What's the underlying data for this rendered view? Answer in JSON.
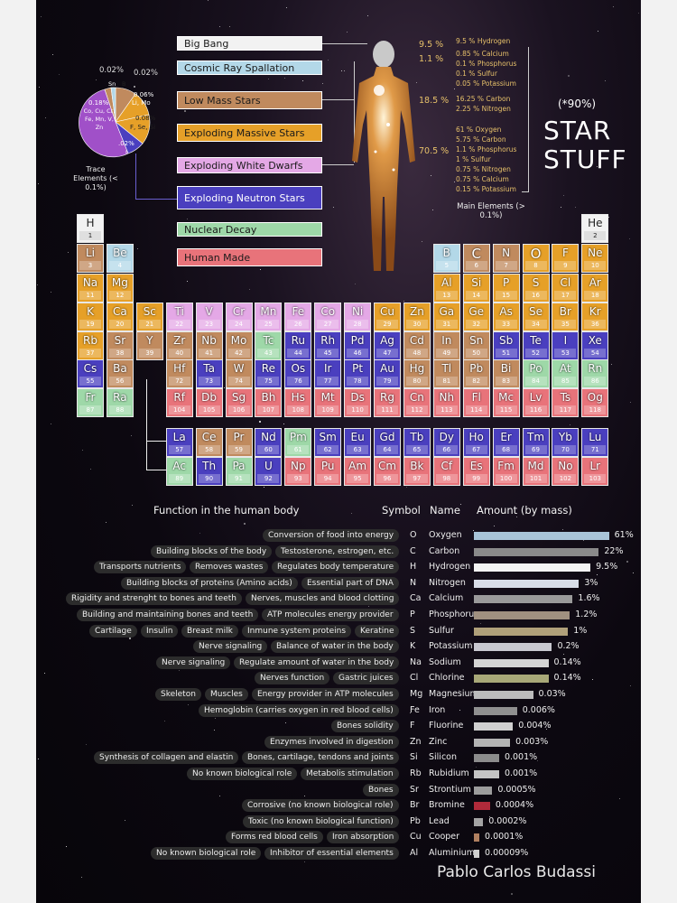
{
  "legend": {
    "big_bang": "Big Bang",
    "cosmic_ray": "Cosmic Ray Spallation",
    "low_mass": "Low Mass Stars",
    "exploding_massive": "Exploding Massive Stars",
    "exploding_white": "Exploding White Dwarfs",
    "exploding_neutron": "Exploding Neutron Stars",
    "nuclear_decay": "Nuclear Decay",
    "human_made": "Human Made"
  },
  "colors": {
    "bigbang": "#f2f2f2",
    "cosmic": "#b3d8e8",
    "lowmass": "#c08a5e",
    "massive": "#e6a028",
    "white": "#e4a8e6",
    "neutron": "#4a3fbf",
    "decay": "#9ed8a8",
    "human": "#e8737a"
  },
  "pie": {
    "title": "Trace Elements (< 0.1%)",
    "p1": "0.02%",
    "p2": "0.02%",
    "p3": "0.06%",
    "p4": "0.18%",
    "p5": "0.08%",
    "p6": ".02%",
    "sn": "Sn",
    "b": "B",
    "li_mo": "Li, Mo",
    "co_list": "Co, Cu, Cr, Fe, Mn, V, Zn",
    "f_se": "F, Se, Si",
    "i": "I"
  },
  "body": {
    "p95": "9.5 %",
    "p11": "1.1 %",
    "p185": "18.5 %",
    "p705": "70.5 %",
    "g1": [
      "9.5 % Hydrogen"
    ],
    "g2": [
      "0.85 % Calcium",
      "0.1 % Phosphorus",
      "0.1 % Sulfur",
      "0.05 % Potassium"
    ],
    "g3": [
      "16.25 % Carbon",
      "2.25 % Nitrogen"
    ],
    "g4": [
      "61 % Oxygen",
      "5.75 % Carbon",
      "1.1 % Phosphorus",
      "1 % Sulfur",
      "0.75 % Nitrogen",
      "0.75 % Calcium",
      "0.15 % Potassium"
    ],
    "main_title": "Main Elements (> 0.1%)"
  },
  "headline": {
    "pct": "(*90%)",
    "line1": "STAR",
    "line2": "STUFF"
  },
  "elements": [
    {
      "s": "H",
      "n": 1,
      "r": 1,
      "c": 1,
      "t": "bigbang"
    },
    {
      "s": "He",
      "n": 2,
      "r": 1,
      "c": 18,
      "t": "bigbang"
    },
    {
      "s": "Li",
      "n": 3,
      "r": 2,
      "c": 1,
      "t": "lowmass"
    },
    {
      "s": "Be",
      "n": 4,
      "r": 2,
      "c": 2,
      "t": "cosmic"
    },
    {
      "s": "B",
      "n": 5,
      "r": 2,
      "c": 13,
      "t": "cosmic"
    },
    {
      "s": "C",
      "n": 6,
      "r": 2,
      "c": 14,
      "t": "lowmass"
    },
    {
      "s": "N",
      "n": 7,
      "r": 2,
      "c": 15,
      "t": "lowmass"
    },
    {
      "s": "O",
      "n": 8,
      "r": 2,
      "c": 16,
      "t": "massive"
    },
    {
      "s": "F",
      "n": 9,
      "r": 2,
      "c": 17,
      "t": "massive"
    },
    {
      "s": "Ne",
      "n": 10,
      "r": 2,
      "c": 18,
      "t": "massive"
    },
    {
      "s": "Na",
      "n": 11,
      "r": 3,
      "c": 1,
      "t": "massive"
    },
    {
      "s": "Mg",
      "n": 12,
      "r": 3,
      "c": 2,
      "t": "massive"
    },
    {
      "s": "Al",
      "n": 13,
      "r": 3,
      "c": 13,
      "t": "massive"
    },
    {
      "s": "Si",
      "n": 14,
      "r": 3,
      "c": 14,
      "t": "massive"
    },
    {
      "s": "P",
      "n": 15,
      "r": 3,
      "c": 15,
      "t": "massive"
    },
    {
      "s": "S",
      "n": 16,
      "r": 3,
      "c": 16,
      "t": "massive"
    },
    {
      "s": "Cl",
      "n": 17,
      "r": 3,
      "c": 17,
      "t": "massive"
    },
    {
      "s": "Ar",
      "n": 18,
      "r": 3,
      "c": 18,
      "t": "massive"
    },
    {
      "s": "K",
      "n": 19,
      "r": 4,
      "c": 1,
      "t": "massive"
    },
    {
      "s": "Ca",
      "n": 20,
      "r": 4,
      "c": 2,
      "t": "massive"
    },
    {
      "s": "Sc",
      "n": 21,
      "r": 4,
      "c": 3,
      "t": "massive"
    },
    {
      "s": "Ti",
      "n": 22,
      "r": 4,
      "c": 4,
      "t": "white"
    },
    {
      "s": "V",
      "n": 23,
      "r": 4,
      "c": 5,
      "t": "white"
    },
    {
      "s": "Cr",
      "n": 24,
      "r": 4,
      "c": 6,
      "t": "white"
    },
    {
      "s": "Mn",
      "n": 25,
      "r": 4,
      "c": 7,
      "t": "white"
    },
    {
      "s": "Fe",
      "n": 26,
      "r": 4,
      "c": 8,
      "t": "white"
    },
    {
      "s": "Co",
      "n": 27,
      "r": 4,
      "c": 9,
      "t": "white"
    },
    {
      "s": "Ni",
      "n": 28,
      "r": 4,
      "c": 10,
      "t": "white"
    },
    {
      "s": "Cu",
      "n": 29,
      "r": 4,
      "c": 11,
      "t": "massive"
    },
    {
      "s": "Zn",
      "n": 30,
      "r": 4,
      "c": 12,
      "t": "massive"
    },
    {
      "s": "Ga",
      "n": 31,
      "r": 4,
      "c": 13,
      "t": "massive"
    },
    {
      "s": "Ge",
      "n": 32,
      "r": 4,
      "c": 14,
      "t": "massive"
    },
    {
      "s": "As",
      "n": 33,
      "r": 4,
      "c": 15,
      "t": "massive"
    },
    {
      "s": "Se",
      "n": 34,
      "r": 4,
      "c": 16,
      "t": "massive"
    },
    {
      "s": "Br",
      "n": 35,
      "r": 4,
      "c": 17,
      "t": "massive"
    },
    {
      "s": "Kr",
      "n": 36,
      "r": 4,
      "c": 18,
      "t": "massive"
    },
    {
      "s": "Rb",
      "n": 37,
      "r": 5,
      "c": 1,
      "t": "massive"
    },
    {
      "s": "Sr",
      "n": 38,
      "r": 5,
      "c": 2,
      "t": "lowmass"
    },
    {
      "s": "Y",
      "n": 39,
      "r": 5,
      "c": 3,
      "t": "lowmass"
    },
    {
      "s": "Zr",
      "n": 40,
      "r": 5,
      "c": 4,
      "t": "lowmass"
    },
    {
      "s": "Nb",
      "n": 41,
      "r": 5,
      "c": 5,
      "t": "lowmass"
    },
    {
      "s": "Mo",
      "n": 42,
      "r": 5,
      "c": 6,
      "t": "lowmass"
    },
    {
      "s": "Tc",
      "n": 43,
      "r": 5,
      "c": 7,
      "t": "decay"
    },
    {
      "s": "Ru",
      "n": 44,
      "r": 5,
      "c": 8,
      "t": "neutron"
    },
    {
      "s": "Rh",
      "n": 45,
      "r": 5,
      "c": 9,
      "t": "neutron"
    },
    {
      "s": "Pd",
      "n": 46,
      "r": 5,
      "c": 10,
      "t": "neutron"
    },
    {
      "s": "Ag",
      "n": 47,
      "r": 5,
      "c": 11,
      "t": "neutron"
    },
    {
      "s": "Cd",
      "n": 48,
      "r": 5,
      "c": 12,
      "t": "lowmass"
    },
    {
      "s": "In",
      "n": 49,
      "r": 5,
      "c": 13,
      "t": "lowmass"
    },
    {
      "s": "Sn",
      "n": 50,
      "r": 5,
      "c": 14,
      "t": "lowmass"
    },
    {
      "s": "Sb",
      "n": 51,
      "r": 5,
      "c": 15,
      "t": "neutron"
    },
    {
      "s": "Te",
      "n": 52,
      "r": 5,
      "c": 16,
      "t": "neutron"
    },
    {
      "s": "I",
      "n": 53,
      "r": 5,
      "c": 17,
      "t": "neutron"
    },
    {
      "s": "Xe",
      "n": 54,
      "r": 5,
      "c": 18,
      "t": "neutron"
    },
    {
      "s": "Cs",
      "n": 55,
      "r": 6,
      "c": 1,
      "t": "neutron"
    },
    {
      "s": "Ba",
      "n": 56,
      "r": 6,
      "c": 2,
      "t": "lowmass"
    },
    {
      "s": "Hf",
      "n": 72,
      "r": 6,
      "c": 4,
      "t": "lowmass"
    },
    {
      "s": "Ta",
      "n": 73,
      "r": 6,
      "c": 5,
      "t": "neutron"
    },
    {
      "s": "W",
      "n": 74,
      "r": 6,
      "c": 6,
      "t": "lowmass"
    },
    {
      "s": "Re",
      "n": 75,
      "r": 6,
      "c": 7,
      "t": "neutron"
    },
    {
      "s": "Os",
      "n": 76,
      "r": 6,
      "c": 8,
      "t": "neutron"
    },
    {
      "s": "Ir",
      "n": 77,
      "r": 6,
      "c": 9,
      "t": "neutron"
    },
    {
      "s": "Pt",
      "n": 78,
      "r": 6,
      "c": 10,
      "t": "neutron"
    },
    {
      "s": "Au",
      "n": 79,
      "r": 6,
      "c": 11,
      "t": "neutron"
    },
    {
      "s": "Hg",
      "n": 80,
      "r": 6,
      "c": 12,
      "t": "lowmass"
    },
    {
      "s": "Tl",
      "n": 81,
      "r": 6,
      "c": 13,
      "t": "lowmass"
    },
    {
      "s": "Pb",
      "n": 82,
      "r": 6,
      "c": 14,
      "t": "lowmass"
    },
    {
      "s": "Bi",
      "n": 83,
      "r": 6,
      "c": 15,
      "t": "lowmass"
    },
    {
      "s": "Po",
      "n": 84,
      "r": 6,
      "c": 16,
      "t": "decay"
    },
    {
      "s": "At",
      "n": 85,
      "r": 6,
      "c": 17,
      "t": "decay"
    },
    {
      "s": "Rn",
      "n": 86,
      "r": 6,
      "c": 18,
      "t": "decay"
    },
    {
      "s": "Fr",
      "n": 87,
      "r": 7,
      "c": 1,
      "t": "decay"
    },
    {
      "s": "Ra",
      "n": 88,
      "r": 7,
      "c": 2,
      "t": "decay"
    },
    {
      "s": "Rf",
      "n": 104,
      "r": 7,
      "c": 4,
      "t": "human"
    },
    {
      "s": "Db",
      "n": 105,
      "r": 7,
      "c": 5,
      "t": "human"
    },
    {
      "s": "Sg",
      "n": 106,
      "r": 7,
      "c": 6,
      "t": "human"
    },
    {
      "s": "Bh",
      "n": 107,
      "r": 7,
      "c": 7,
      "t": "human"
    },
    {
      "s": "Hs",
      "n": 108,
      "r": 7,
      "c": 8,
      "t": "human"
    },
    {
      "s": "Mt",
      "n": 109,
      "r": 7,
      "c": 9,
      "t": "human"
    },
    {
      "s": "Ds",
      "n": 110,
      "r": 7,
      "c": 10,
      "t": "human"
    },
    {
      "s": "Rg",
      "n": 111,
      "r": 7,
      "c": 11,
      "t": "human"
    },
    {
      "s": "Cn",
      "n": 112,
      "r": 7,
      "c": 12,
      "t": "human"
    },
    {
      "s": "Nh",
      "n": 113,
      "r": 7,
      "c": 13,
      "t": "human"
    },
    {
      "s": "Fl",
      "n": 114,
      "r": 7,
      "c": 14,
      "t": "human"
    },
    {
      "s": "Mc",
      "n": 115,
      "r": 7,
      "c": 15,
      "t": "human"
    },
    {
      "s": "Lv",
      "n": 116,
      "r": 7,
      "c": 16,
      "t": "human"
    },
    {
      "s": "Ts",
      "n": 117,
      "r": 7,
      "c": 17,
      "t": "human"
    },
    {
      "s": "Og",
      "n": 118,
      "r": 7,
      "c": 18,
      "t": "human"
    },
    {
      "s": "La",
      "n": 57,
      "r": 9,
      "c": 4,
      "t": "neutron"
    },
    {
      "s": "Ce",
      "n": 58,
      "r": 9,
      "c": 5,
      "t": "lowmass"
    },
    {
      "s": "Pr",
      "n": 59,
      "r": 9,
      "c": 6,
      "t": "lowmass"
    },
    {
      "s": "Nd",
      "n": 60,
      "r": 9,
      "c": 7,
      "t": "neutron"
    },
    {
      "s": "Pm",
      "n": 61,
      "r": 9,
      "c": 8,
      "t": "decay"
    },
    {
      "s": "Sm",
      "n": 62,
      "r": 9,
      "c": 9,
      "t": "neutron"
    },
    {
      "s": "Eu",
      "n": 63,
      "r": 9,
      "c": 10,
      "t": "neutron"
    },
    {
      "s": "Gd",
      "n": 64,
      "r": 9,
      "c": 11,
      "t": "neutron"
    },
    {
      "s": "Tb",
      "n": 65,
      "r": 9,
      "c": 12,
      "t": "neutron"
    },
    {
      "s": "Dy",
      "n": 66,
      "r": 9,
      "c": 13,
      "t": "neutron"
    },
    {
      "s": "Ho",
      "n": 67,
      "r": 9,
      "c": 14,
      "t": "neutron"
    },
    {
      "s": "Er",
      "n": 68,
      "r": 9,
      "c": 15,
      "t": "neutron"
    },
    {
      "s": "Tm",
      "n": 69,
      "r": 9,
      "c": 16,
      "t": "neutron"
    },
    {
      "s": "Yb",
      "n": 70,
      "r": 9,
      "c": 17,
      "t": "neutron"
    },
    {
      "s": "Lu",
      "n": 71,
      "r": 9,
      "c": 18,
      "t": "neutron"
    },
    {
      "s": "Ac",
      "n": 89,
      "r": 10,
      "c": 4,
      "t": "decay"
    },
    {
      "s": "Th",
      "n": 90,
      "r": 10,
      "c": 5,
      "t": "neutron"
    },
    {
      "s": "Pa",
      "n": 91,
      "r": 10,
      "c": 6,
      "t": "decay"
    },
    {
      "s": "U",
      "n": 92,
      "r": 10,
      "c": 7,
      "t": "neutron"
    },
    {
      "s": "Np",
      "n": 93,
      "r": 10,
      "c": 8,
      "t": "human"
    },
    {
      "s": "Pu",
      "n": 94,
      "r": 10,
      "c": 9,
      "t": "human"
    },
    {
      "s": "Am",
      "n": 95,
      "r": 10,
      "c": 10,
      "t": "human"
    },
    {
      "s": "Cm",
      "n": 96,
      "r": 10,
      "c": 11,
      "t": "human"
    },
    {
      "s": "Bk",
      "n": 97,
      "r": 10,
      "c": 12,
      "t": "human"
    },
    {
      "s": "Cf",
      "n": 98,
      "r": 10,
      "c": 13,
      "t": "human"
    },
    {
      "s": "Es",
      "n": 99,
      "r": 10,
      "c": 14,
      "t": "human"
    },
    {
      "s": "Fm",
      "n": 100,
      "r": 10,
      "c": 15,
      "t": "human"
    },
    {
      "s": "Md",
      "n": 101,
      "r": 10,
      "c": 16,
      "t": "human"
    },
    {
      "s": "No",
      "n": 102,
      "r": 10,
      "c": 17,
      "t": "human"
    },
    {
      "s": "Lr",
      "n": 103,
      "r": 10,
      "c": 18,
      "t": "human"
    }
  ],
  "table_header": {
    "function": "Function in the human body",
    "symbol": "Symbol",
    "name": "Name",
    "amount": "Amount (by mass)"
  },
  "rows": [
    {
      "f": [
        "Conversion of food into energy"
      ],
      "s": "O",
      "n": "Oxygen",
      "a": "61%",
      "v": 61,
      "col": "#a8c4d8"
    },
    {
      "f": [
        "Building blocks of the body",
        "Testosterone, estrogen, etc."
      ],
      "s": "C",
      "n": "Carbon",
      "a": "22%",
      "v": 22,
      "col": "#8a8a8a"
    },
    {
      "f": [
        "Transports nutrients",
        "Removes wastes",
        "Regulates body temperature"
      ],
      "s": "H",
      "n": "Hydrogen",
      "a": "9.5%",
      "v": 9.5,
      "col": "#f4f4f4"
    },
    {
      "f": [
        "Building blocks of proteins (Amino acids)",
        "Essential part of DNA"
      ],
      "s": "N",
      "n": "Nitrogen",
      "a": "3%",
      "v": 3,
      "col": "#d8dde8"
    },
    {
      "f": [
        "Rigidity and strenght to bones and teeth",
        "Nerves, muscles and blood clotting"
      ],
      "s": "Ca",
      "n": "Calcium",
      "a": "1.6%",
      "v": 1.6,
      "col": "#9a9a9a"
    },
    {
      "f": [
        "Building and maintaining bones and teeth",
        "ATP molecules energy provider"
      ],
      "s": "P",
      "n": "Phosphorus",
      "a": "1.2%",
      "v": 1.2,
      "col": "#a09080"
    },
    {
      "f": [
        "Cartilage",
        "Insulin",
        "Breast milk",
        "Inmune system proteins",
        "Keratine"
      ],
      "s": "S",
      "n": "Sulfur",
      "a": "1%",
      "v": 1,
      "col": "#b0a07a"
    },
    {
      "f": [
        "Nerve signaling",
        "Balance of water in the body"
      ],
      "s": "K",
      "n": "Potassium",
      "a": "0.2%",
      "v": 0.2,
      "col": "#c8c8d0"
    },
    {
      "f": [
        "Nerve signaling",
        "Regulate amount of water in the body"
      ],
      "s": "Na",
      "n": "Sodium",
      "a": "0.14%",
      "v": 0.14,
      "col": "#d4d4d4"
    },
    {
      "f": [
        "Nerves function",
        "Gastric juices"
      ],
      "s": "Cl",
      "n": "Chlorine",
      "a": "0.14%",
      "v": 0.14,
      "col": "#a8a878"
    },
    {
      "f": [
        "Skeleton",
        "Muscles",
        "Energy provider in ATP molecules"
      ],
      "s": "Mg",
      "n": "Magnesium",
      "a": "0.03%",
      "v": 0.03,
      "col": "#bcbcbc"
    },
    {
      "f": [
        "Hemoglobin (carries oxygen in red blood cells)"
      ],
      "s": "Fe",
      "n": "Iron",
      "a": "0.006%",
      "v": 0.006,
      "col": "#909090"
    },
    {
      "f": [
        "Bones solidity"
      ],
      "s": "F",
      "n": "Fluorine",
      "a": "0.004%",
      "v": 0.004,
      "col": "#d0d0d0"
    },
    {
      "f": [
        "Enzymes involved in digestion"
      ],
      "s": "Zn",
      "n": "Zinc",
      "a": "0.003%",
      "v": 0.003,
      "col": "#b4b4b4"
    },
    {
      "f": [
        "Synthesis of collagen and elastin",
        "Bones, cartilage, tendons and joints"
      ],
      "s": "Si",
      "n": "Silicon",
      "a": "0.001%",
      "v": 0.001,
      "col": "#8c8c8c"
    },
    {
      "f": [
        "No known biological role",
        "Metabolis stimulation"
      ],
      "s": "Rb",
      "n": "Rubidium",
      "a": "0.001%",
      "v": 0.001,
      "col": "#c4c4c4"
    },
    {
      "f": [
        "Bones"
      ],
      "s": "Sr",
      "n": "Strontium",
      "a": "0.0005%",
      "v": 0.0005,
      "col": "#9c9c9c"
    },
    {
      "f": [
        "Corrosive (no known biological role)"
      ],
      "s": "Br",
      "n": "Bromine",
      "a": "0.0004%",
      "v": 0.0004,
      "col": "#b02a3a"
    },
    {
      "f": [
        "Toxic (no known biological function)"
      ],
      "s": "Pb",
      "n": "Lead",
      "a": "0.0002%",
      "v": 0.0002,
      "col": "#a4a4a4"
    },
    {
      "f": [
        "Forms red blood cells",
        "Iron absorption"
      ],
      "s": "Cu",
      "n": "Cooper",
      "a": "0.0001%",
      "v": 0.0001,
      "col": "#b08060"
    },
    {
      "f": [
        "No known biological role",
        "Inhibitor of essential elements"
      ],
      "s": "Al",
      "n": "Aluminium",
      "a": "0.00009%",
      "v": 9e-05,
      "col": "#cfcfcf"
    }
  ],
  "watermark": "Pablo Carlos Budassi"
}
